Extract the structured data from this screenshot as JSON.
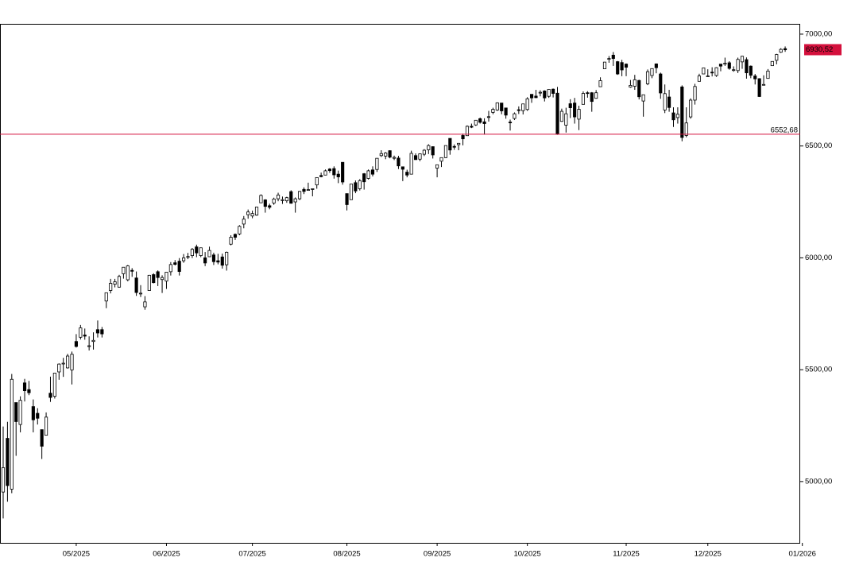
{
  "chart_data": {
    "type": "candlestick",
    "ohlc": [
      [
        4953,
        5246,
        4835,
        5062
      ],
      [
        5193,
        5267,
        4910,
        4982
      ],
      [
        4966,
        5481,
        4948,
        5457
      ],
      [
        5353,
        5353,
        5115,
        5268
      ],
      [
        5255,
        5381,
        5220,
        5363
      ],
      [
        5441,
        5459,
        5358,
        5406
      ],
      [
        5411,
        5450,
        5386,
        5397
      ],
      [
        5335,
        5367,
        5220,
        5276
      ],
      [
        5305,
        5328,
        5255,
        5283
      ],
      [
        5232,
        5232,
        5101,
        5158
      ],
      [
        5207,
        5309,
        5207,
        5288
      ],
      [
        5395,
        5469,
        5356,
        5376
      ],
      [
        5381,
        5485,
        5371,
        5485
      ],
      [
        5490,
        5528,
        5455,
        5525
      ],
      [
        5529,
        5553,
        5468,
        5529
      ],
      [
        5508,
        5571,
        5505,
        5561
      ],
      [
        5499,
        5581,
        5434,
        5569
      ],
      [
        5626,
        5659,
        5599,
        5604
      ],
      [
        5645,
        5700,
        5635,
        5687
      ],
      [
        5655,
        5684,
        5634,
        5650
      ],
      [
        5606,
        5649,
        5586,
        5607
      ],
      [
        5626,
        5667,
        5590,
        5631
      ],
      [
        5679,
        5720,
        5644,
        5664
      ],
      [
        5679,
        5691,
        5644,
        5660
      ],
      [
        5807,
        5845,
        5775,
        5844
      ],
      [
        5854,
        5906,
        5841,
        5886
      ],
      [
        5882,
        5906,
        5868,
        5893
      ],
      [
        5869,
        5924,
        5867,
        5917
      ],
      [
        5929,
        5958,
        5907,
        5958
      ],
      [
        5902,
        5968,
        5895,
        5964
      ],
      [
        5944,
        5954,
        5915,
        5940
      ],
      [
        5910,
        5939,
        5830,
        5845
      ],
      [
        5841,
        5878,
        5825,
        5842
      ],
      [
        5781,
        5829,
        5768,
        5803
      ],
      [
        5854,
        5924,
        5854,
        5922
      ],
      [
        5925,
        5931,
        5886,
        5889
      ],
      [
        5938,
        5944,
        5874,
        5912
      ],
      [
        5903,
        5922,
        5843,
        5912
      ],
      [
        5896,
        5937,
        5861,
        5936
      ],
      [
        5938,
        5981,
        5921,
        5970
      ],
      [
        5978,
        5990,
        5966,
        5971
      ],
      [
        5985,
        5999,
        5921,
        5939
      ],
      [
        5987,
        6017,
        5978,
        6000
      ],
      [
        6005,
        6022,
        5994,
        6006
      ],
      [
        6010,
        6044,
        5999,
        6038
      ],
      [
        6049,
        6059,
        6003,
        6022
      ],
      [
        6010,
        6046,
        6003,
        6045
      ],
      [
        6000,
        6026,
        5963,
        5977
      ],
      [
        6005,
        6050,
        6004,
        6033
      ],
      [
        6013,
        6023,
        5968,
        5983
      ],
      [
        5987,
        6018,
        5971,
        5981
      ],
      [
        6004,
        6019,
        5952,
        5967
      ],
      [
        5969,
        6028,
        5943,
        6025
      ],
      [
        6061,
        6101,
        6056,
        6092
      ],
      [
        6105,
        6109,
        6080,
        6092
      ],
      [
        6107,
        6146,
        6101,
        6141
      ],
      [
        6151,
        6187,
        6132,
        6173
      ],
      [
        6193,
        6216,
        6175,
        6205
      ],
      [
        6187,
        6211,
        6177,
        6198
      ],
      [
        6191,
        6228,
        6188,
        6227
      ],
      [
        6246,
        6284,
        6245,
        6279
      ],
      [
        6259,
        6262,
        6202,
        6230
      ],
      [
        6233,
        6242,
        6217,
        6226
      ],
      [
        6245,
        6269,
        6237,
        6263
      ],
      [
        6264,
        6291,
        6253,
        6281
      ],
      [
        6256,
        6274,
        6241,
        6260
      ],
      [
        6255,
        6273,
        6246,
        6269
      ],
      [
        6296,
        6302,
        6242,
        6244
      ],
      [
        6250,
        6270,
        6202,
        6264
      ],
      [
        6264,
        6299,
        6258,
        6297
      ],
      [
        6306,
        6315,
        6285,
        6297
      ],
      [
        6304,
        6336,
        6303,
        6305
      ],
      [
        6307,
        6310,
        6275,
        6309
      ],
      [
        6326,
        6360,
        6309,
        6359
      ],
      [
        6368,
        6381,
        6360,
        6363
      ],
      [
        6370,
        6395,
        6369,
        6389
      ],
      [
        6397,
        6401,
        6380,
        6390
      ],
      [
        6399,
        6409,
        6354,
        6371
      ],
      [
        6374,
        6390,
        6334,
        6362
      ],
      [
        6427,
        6427,
        6327,
        6339
      ],
      [
        6287,
        6288,
        6212,
        6238
      ],
      [
        6260,
        6330,
        6260,
        6330
      ],
      [
        6336,
        6346,
        6289,
        6299
      ],
      [
        6309,
        6352,
        6301,
        6345
      ],
      [
        6376,
        6379,
        6305,
        6340
      ],
      [
        6355,
        6395,
        6350,
        6389
      ],
      [
        6393,
        6409,
        6364,
        6374
      ],
      [
        6395,
        6446,
        6384,
        6445
      ],
      [
        6457,
        6481,
        6451,
        6466
      ],
      [
        6455,
        6473,
        6441,
        6469
      ],
      [
        6479,
        6481,
        6445,
        6450
      ],
      [
        6445,
        6457,
        6437,
        6449
      ],
      [
        6446,
        6456,
        6397,
        6411
      ],
      [
        6407,
        6407,
        6343,
        6396
      ],
      [
        6383,
        6394,
        6360,
        6370
      ],
      [
        6374,
        6479,
        6374,
        6467
      ],
      [
        6457,
        6467,
        6438,
        6439
      ],
      [
        6441,
        6467,
        6432,
        6465
      ],
      [
        6463,
        6486,
        6455,
        6481
      ],
      [
        6483,
        6508,
        6464,
        6502
      ],
      [
        6497,
        6498,
        6444,
        6460
      ],
      [
        6401,
        6416,
        6360,
        6416
      ],
      [
        6432,
        6448,
        6406,
        6448
      ],
      [
        6448,
        6502,
        6446,
        6502
      ],
      [
        6534,
        6533,
        6461,
        6482
      ],
      [
        6498,
        6507,
        6483,
        6495
      ],
      [
        6506,
        6513,
        6481,
        6512
      ],
      [
        6547,
        6555,
        6503,
        6532
      ],
      [
        6546,
        6592,
        6545,
        6588
      ],
      [
        6588,
        6600,
        6580,
        6584
      ],
      [
        6594,
        6616,
        6590,
        6615
      ],
      [
        6622,
        6627,
        6600,
        6606
      ],
      [
        6608,
        6624,
        6551,
        6600
      ],
      [
        6631,
        6657,
        6609,
        6631
      ],
      [
        6650,
        6671,
        6642,
        6664
      ],
      [
        6661,
        6695,
        6657,
        6693
      ],
      [
        6692,
        6692,
        6642,
        6657
      ],
      [
        6670,
        6670,
        6622,
        6638
      ],
      [
        6607,
        6618,
        6569,
        6605
      ],
      [
        6623,
        6650,
        6616,
        6644
      ],
      [
        6662,
        6677,
        6643,
        6661
      ],
      [
        6658,
        6689,
        6641,
        6688
      ],
      [
        6663,
        6718,
        6657,
        6711
      ],
      [
        6731,
        6731,
        6693,
        6715
      ],
      [
        6723,
        6751,
        6714,
        6716
      ],
      [
        6738,
        6749,
        6722,
        6740
      ],
      [
        6746,
        6749,
        6699,
        6715
      ],
      [
        6722,
        6753,
        6715,
        6753
      ],
      [
        6754,
        6757,
        6717,
        6735
      ],
      [
        6736,
        6764,
        6550,
        6553
      ],
      [
        6610,
        6667,
        6608,
        6655
      ],
      [
        6593,
        6671,
        6560,
        6644
      ],
      [
        6689,
        6709,
        6625,
        6671
      ],
      [
        6692,
        6715,
        6600,
        6630
      ],
      [
        6620,
        6680,
        6571,
        6664
      ],
      [
        6686,
        6744,
        6686,
        6735
      ],
      [
        6738,
        6745,
        6716,
        6735
      ],
      [
        6738,
        6741,
        6653,
        6699
      ],
      [
        6713,
        6750,
        6711,
        6738
      ],
      [
        6765,
        6807,
        6764,
        6792
      ],
      [
        6845,
        6876,
        6845,
        6875
      ],
      [
        6888,
        6902,
        6872,
        6891
      ],
      [
        6906,
        6920,
        6858,
        6891
      ],
      [
        6877,
        6880,
        6818,
        6822
      ],
      [
        6873,
        6885,
        6812,
        6840
      ],
      [
        6866,
        6869,
        6812,
        6852
      ],
      [
        6763,
        6795,
        6760,
        6771
      ],
      [
        6767,
        6818,
        6751,
        6796
      ],
      [
        6793,
        6796,
        6708,
        6720
      ],
      [
        6701,
        6728,
        6631,
        6729
      ],
      [
        6778,
        6842,
        6772,
        6832
      ],
      [
        6815,
        6847,
        6803,
        6846
      ],
      [
        6867,
        6869,
        6825,
        6850
      ],
      [
        6822,
        6828,
        6711,
        6737
      ],
      [
        6661,
        6775,
        6647,
        6734
      ],
      [
        6719,
        6751,
        6653,
        6672
      ],
      [
        6648,
        6673,
        6585,
        6617
      ],
      [
        6627,
        6673,
        6600,
        6642
      ],
      [
        6764,
        6771,
        6521,
        6538
      ],
      [
        6547,
        6673,
        6539,
        6603
      ],
      [
        6630,
        6713,
        6622,
        6705
      ],
      [
        6705,
        6778,
        6685,
        6766
      ],
      [
        6789,
        6823,
        6789,
        6813
      ],
      [
        6822,
        6850,
        6822,
        6849
      ],
      [
        6813,
        6843,
        6808,
        6813
      ],
      [
        6830,
        6852,
        6811,
        6829
      ],
      [
        6815,
        6852,
        6809,
        6850
      ],
      [
        6866,
        6866,
        6834,
        6857
      ],
      [
        6866,
        6895,
        6858,
        6870
      ],
      [
        6872,
        6879,
        6841,
        6847
      ],
      [
        6840,
        6856,
        6832,
        6841
      ],
      [
        6837,
        6895,
        6826,
        6887
      ],
      [
        6876,
        6903,
        6845,
        6901
      ],
      [
        6886,
        6896,
        6801,
        6827
      ],
      [
        6857,
        6860,
        6803,
        6816
      ],
      [
        6813,
        6822,
        6775,
        6800
      ],
      [
        6801,
        6803,
        6719,
        6721
      ],
      [
        6774,
        6816,
        6773,
        6775
      ],
      [
        6802,
        6844,
        6802,
        6835
      ],
      [
        6859,
        6879,
        6859,
        6878
      ],
      [
        6883,
        6912,
        6865,
        6909
      ],
      [
        6919,
        6937,
        6916,
        6932
      ],
      [
        6935,
        6945,
        6921,
        6930
      ]
    ],
    "xlim": [
      -0.74,
      185.5
    ],
    "xticks": [
      {
        "value": 17,
        "label": "05/2025"
      },
      {
        "value": 38,
        "label": "06/2025"
      },
      {
        "value": 58,
        "label": "07/2025"
      },
      {
        "value": 80,
        "label": "08/2025"
      },
      {
        "value": 101,
        "label": "09/2025"
      },
      {
        "value": 122,
        "label": "10/2025"
      },
      {
        "value": 145,
        "label": "11/2025"
      },
      {
        "value": 164,
        "label": "12/2025"
      },
      {
        "value": 186,
        "label": "01/2026"
      }
    ],
    "ylim": [
      4726,
      7046
    ],
    "yticks": [
      {
        "value": 5000,
        "label": "5000,00"
      },
      {
        "value": 5500,
        "label": "5500,00"
      },
      {
        "value": 6000,
        "label": "6000,00"
      },
      {
        "value": 6500,
        "label": "6500,00"
      },
      {
        "value": 7000,
        "label": "7000,00"
      }
    ],
    "colors": {
      "up": "#ffffff",
      "down": "#000000",
      "edge": "#000000"
    },
    "hline": {
      "value": 6552.68,
      "label": "6552,68",
      "color": "#d4103c"
    },
    "last_price": {
      "value": 6930.52,
      "label": "6930,52",
      "color": "#d4103c"
    }
  }
}
